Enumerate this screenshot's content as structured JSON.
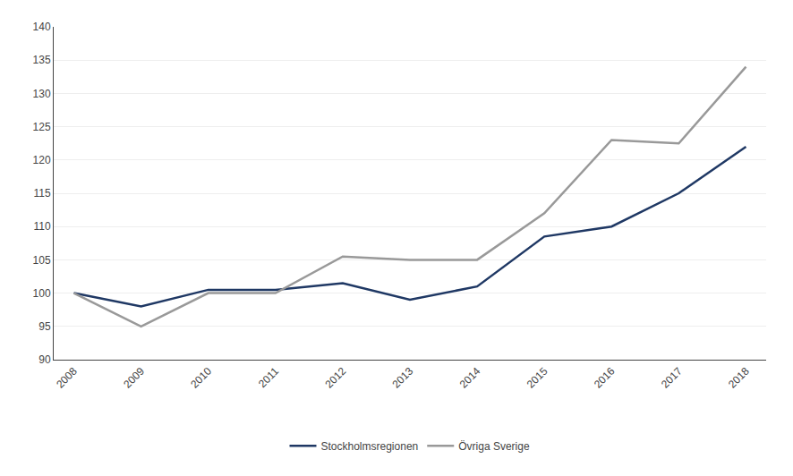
{
  "chart_data": {
    "type": "line",
    "x": [
      2008,
      2009,
      2010,
      2011,
      2012,
      2013,
      2014,
      2015,
      2016,
      2017,
      2018
    ],
    "series": [
      {
        "name": "Stockholmsregionen",
        "color": "#1f3864",
        "values": [
          100,
          98,
          100.5,
          100.5,
          101.5,
          99,
          101,
          108.5,
          110,
          115,
          122
        ]
      },
      {
        "name": "Övriga Sverige",
        "color": "#999999",
        "values": [
          100,
          95,
          100,
          100,
          105.5,
          105,
          105,
          112,
          123,
          122.5,
          134
        ]
      }
    ],
    "xlim": [
      2007.7,
      2018.3
    ],
    "xticks": [
      2008,
      2009,
      2010,
      2011,
      2012,
      2013,
      2014,
      2015,
      2016,
      2017,
      2018
    ],
    "ylim": [
      90,
      140
    ],
    "yticks": [
      90,
      95,
      100,
      105,
      110,
      115,
      120,
      125,
      130,
      135,
      140
    ],
    "grid": "y",
    "legend": "bottom"
  }
}
